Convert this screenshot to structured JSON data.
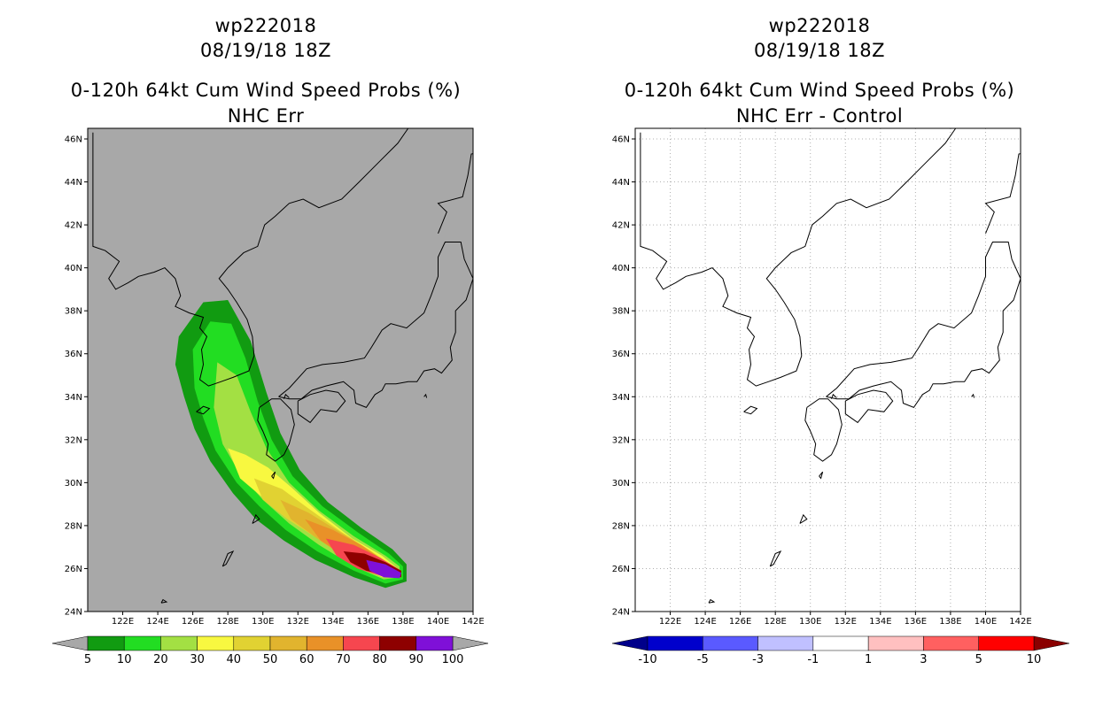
{
  "left_panel": {
    "storm_id": "wp222018",
    "datetime": "08/19/18 18Z",
    "product": "0-120h 64kt Cum Wind Speed Probs (%)",
    "subtitle": "NHC Err",
    "background_color": "#a8a8a8",
    "colorbar": {
      "colors": [
        "#119b11",
        "#22dd22",
        "#a3e043",
        "#f8f840",
        "#e1d232",
        "#e1b42e",
        "#e99128",
        "#f6464f",
        "#8e0000",
        "#7f10d8"
      ],
      "labels": [
        "5",
        "10",
        "20",
        "30",
        "40",
        "50",
        "60",
        "70",
        "80",
        "90",
        "100"
      ],
      "arrow_color": "#a8a8a8"
    }
  },
  "right_panel": {
    "storm_id": "wp222018",
    "datetime": "08/19/18 18Z",
    "product": "0-120h 64kt Cum Wind Speed Probs (%)",
    "subtitle": "NHC Err - Control",
    "background_color": "#ffffff",
    "colorbar": {
      "colors": [
        "#0000cc",
        "#5a5aff",
        "#c0c0ff",
        "#ffffff",
        "#ffc0c0",
        "#ff6060",
        "#ff0000"
      ],
      "labels": [
        "-10",
        "-5",
        "-3",
        "-1",
        "1",
        "3",
        "5",
        "10"
      ],
      "arrow_low_color": "#00008a",
      "arrow_high_color": "#8a0000"
    }
  },
  "axes": {
    "lat_labels": [
      "46N",
      "44N",
      "42N",
      "40N",
      "38N",
      "36N",
      "34N",
      "32N",
      "30N",
      "28N",
      "26N",
      "24N"
    ],
    "lon_labels": [
      "122E",
      "124E",
      "126E",
      "128E",
      "130E",
      "132E",
      "134E",
      "136E",
      "138E",
      "140E",
      "142E"
    ],
    "lon_range": [
      120,
      142
    ],
    "lat_range": [
      24,
      46.5
    ]
  },
  "probability_swath": [
    {
      "level": 5,
      "color": "#119b11",
      "path": [
        [
          126.6,
          38.4
        ],
        [
          128.0,
          38.5
        ],
        [
          129.3,
          36.6
        ],
        [
          130.2,
          34.2
        ],
        [
          131.0,
          32.3
        ],
        [
          132.1,
          30.6
        ],
        [
          133.7,
          29.1
        ],
        [
          135.6,
          27.9
        ],
        [
          137.4,
          26.9
        ],
        [
          138.2,
          26.2
        ],
        [
          138.2,
          25.4
        ],
        [
          137.0,
          25.1
        ],
        [
          135.2,
          25.6
        ],
        [
          133.0,
          26.4
        ],
        [
          131.2,
          27.3
        ],
        [
          129.6,
          28.3
        ],
        [
          128.3,
          29.5
        ],
        [
          127.0,
          31.0
        ],
        [
          126.1,
          32.5
        ],
        [
          125.5,
          34.0
        ],
        [
          125.0,
          35.5
        ],
        [
          125.2,
          36.8
        ]
      ]
    },
    {
      "level": 10,
      "color": "#22dd22",
      "path": [
        [
          127.0,
          37.5
        ],
        [
          128.2,
          37.4
        ],
        [
          129.0,
          35.8
        ],
        [
          129.7,
          33.8
        ],
        [
          130.5,
          32.0
        ],
        [
          131.7,
          30.3
        ],
        [
          133.4,
          28.9
        ],
        [
          135.4,
          27.7
        ],
        [
          137.2,
          26.7
        ],
        [
          138.0,
          26.1
        ],
        [
          138.0,
          25.5
        ],
        [
          137.0,
          25.3
        ],
        [
          135.2,
          25.9
        ],
        [
          133.1,
          26.8
        ],
        [
          131.3,
          27.8
        ],
        [
          129.8,
          28.9
        ],
        [
          128.5,
          30.0
        ],
        [
          127.3,
          31.5
        ],
        [
          126.6,
          33.0
        ],
        [
          126.1,
          34.4
        ],
        [
          126.0,
          36.2
        ]
      ]
    },
    {
      "level": 20,
      "color": "#a3e043",
      "path": [
        [
          127.4,
          35.6
        ],
        [
          128.5,
          35.0
        ],
        [
          129.3,
          33.3
        ],
        [
          130.2,
          31.6
        ],
        [
          131.5,
          30.0
        ],
        [
          133.2,
          28.7
        ],
        [
          135.2,
          27.5
        ],
        [
          137.0,
          26.6
        ],
        [
          137.8,
          26.1
        ],
        [
          137.8,
          25.6
        ],
        [
          136.9,
          25.5
        ],
        [
          135.2,
          26.1
        ],
        [
          133.2,
          27.1
        ],
        [
          131.5,
          28.1
        ],
        [
          130.0,
          29.2
        ],
        [
          128.7,
          30.4
        ],
        [
          127.7,
          31.8
        ],
        [
          127.2,
          33.5
        ]
      ]
    },
    {
      "level": 30,
      "color": "#f8f840",
      "path": [
        [
          128.0,
          31.6
        ],
        [
          129.0,
          31.3
        ],
        [
          130.3,
          30.7
        ],
        [
          131.6,
          29.8
        ],
        [
          133.2,
          28.6
        ],
        [
          135.1,
          27.4
        ],
        [
          136.8,
          26.6
        ],
        [
          137.7,
          26.0
        ],
        [
          137.7,
          25.7
        ],
        [
          136.8,
          25.6
        ],
        [
          135.2,
          26.2
        ],
        [
          133.4,
          27.3
        ],
        [
          131.6,
          28.3
        ],
        [
          130.0,
          29.3
        ],
        [
          128.7,
          30.2
        ]
      ]
    },
    {
      "level": 40,
      "color": "#e1d232",
      "path": [
        [
          129.5,
          30.2
        ],
        [
          131.1,
          29.7
        ],
        [
          132.6,
          28.8
        ],
        [
          134.5,
          27.7
        ],
        [
          136.2,
          26.8
        ],
        [
          137.6,
          26.0
        ],
        [
          137.6,
          25.7
        ],
        [
          136.7,
          25.7
        ],
        [
          135.1,
          26.3
        ],
        [
          133.3,
          27.3
        ],
        [
          131.4,
          28.3
        ],
        [
          130.0,
          29.2
        ]
      ]
    },
    {
      "level": 50,
      "color": "#e1b42e",
      "path": [
        [
          131.0,
          29.2
        ],
        [
          132.6,
          28.6
        ],
        [
          134.2,
          27.8
        ],
        [
          135.8,
          27.0
        ],
        [
          137.5,
          26.0
        ],
        [
          137.5,
          25.7
        ],
        [
          136.6,
          25.8
        ],
        [
          134.9,
          26.4
        ],
        [
          133.1,
          27.4
        ],
        [
          131.6,
          28.3
        ]
      ]
    },
    {
      "level": 60,
      "color": "#e99128",
      "path": [
        [
          132.4,
          28.3
        ],
        [
          134.0,
          27.8
        ],
        [
          135.6,
          27.1
        ],
        [
          137.4,
          26.1
        ],
        [
          137.4,
          25.7
        ],
        [
          136.5,
          25.9
        ],
        [
          134.8,
          26.5
        ],
        [
          133.3,
          27.3
        ]
      ]
    },
    {
      "level": 70,
      "color": "#f6464f",
      "path": [
        [
          133.6,
          27.4
        ],
        [
          135.2,
          27.1
        ],
        [
          136.7,
          26.5
        ],
        [
          137.9,
          25.9
        ],
        [
          137.9,
          25.6
        ],
        [
          137.0,
          25.6
        ],
        [
          135.4,
          26.0
        ],
        [
          134.2,
          26.6
        ]
      ]
    },
    {
      "level": 80,
      "color": "#8e0000",
      "path": [
        [
          134.6,
          26.8
        ],
        [
          135.8,
          26.7
        ],
        [
          137.0,
          26.3
        ],
        [
          137.9,
          25.9
        ],
        [
          137.9,
          25.6
        ],
        [
          137.0,
          25.7
        ],
        [
          135.9,
          25.9
        ],
        [
          135.0,
          26.3
        ]
      ]
    },
    {
      "level": 90,
      "color": "#7f10d8",
      "path": [
        [
          135.9,
          26.4
        ],
        [
          137.0,
          26.2
        ],
        [
          137.9,
          25.8
        ],
        [
          137.8,
          25.55
        ],
        [
          136.9,
          25.6
        ],
        [
          136.1,
          25.9
        ]
      ]
    }
  ]
}
